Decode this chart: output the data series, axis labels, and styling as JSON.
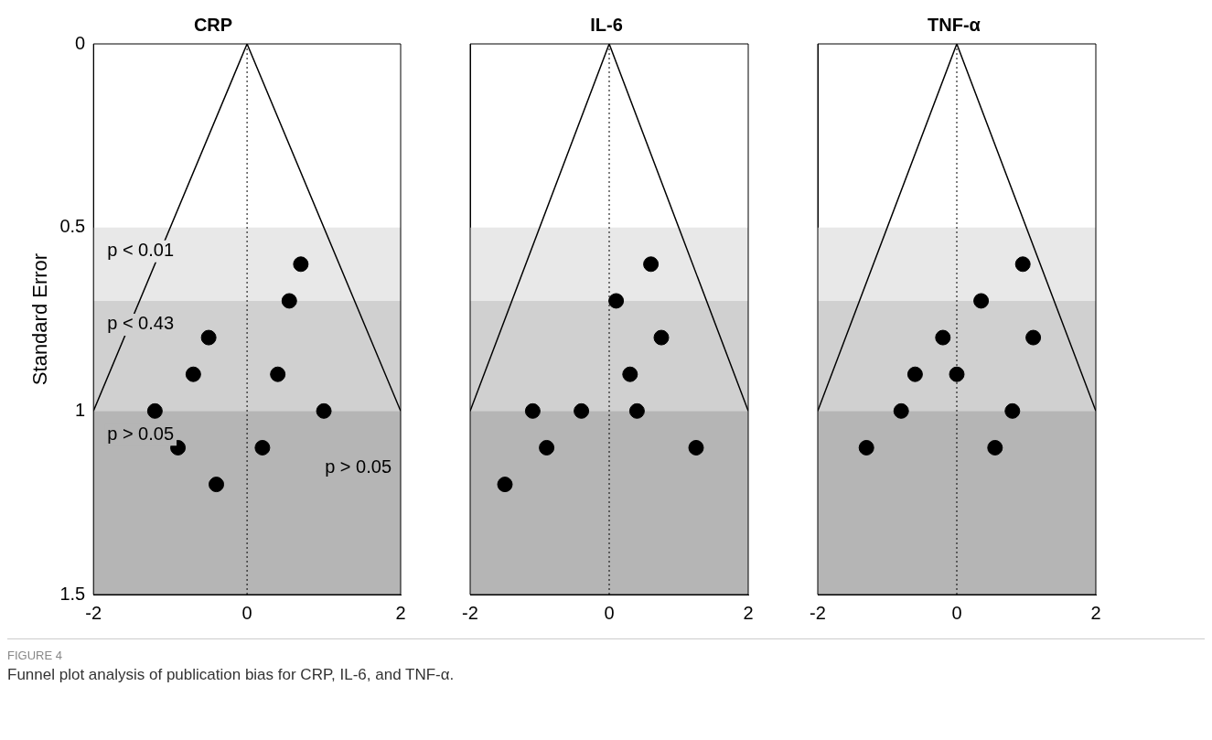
{
  "chart_data": [
    {
      "type": "scatter",
      "title": "CRP",
      "ylabel": "Standard Error",
      "xlim": [
        -2,
        2
      ],
      "xticks": [
        -2,
        0,
        2
      ],
      "ylim": [
        1.5,
        0
      ],
      "yticks": [
        0,
        0.5,
        1,
        1.5
      ],
      "grid": false,
      "legend": false,
      "series": [
        {
          "type": "line",
          "color": "#000000",
          "x": [
            -2,
            0,
            2
          ],
          "values": [
            1,
            0,
            1
          ]
        },
        {
          "type": "scatter",
          "marker": "circle",
          "color": "#000000",
          "x": [
            0.7,
            0.55,
            -0.5,
            -0.7,
            0.4,
            -1.2,
            1.0,
            -0.9,
            0.2,
            -0.4
          ],
          "values": [
            0.6,
            0.7,
            0.8,
            0.9,
            0.9,
            1.0,
            1.0,
            1.1,
            1.1,
            1.2
          ]
        }
      ],
      "bands": [
        {
          "axis": "y",
          "from": 0.5,
          "to": 0.7,
          "label": "p < 0.01",
          "color": "#e8e8e8"
        },
        {
          "axis": "y",
          "from": 0.7,
          "to": 1.0,
          "label": "p < 0.43",
          "color": "#d0d0d0"
        },
        {
          "axis": "y",
          "from": 1.0,
          "to": 1.5,
          "label": "p > 0.05",
          "color": "#b5b5b5"
        }
      ],
      "ref_lines": [
        {
          "axis": "x",
          "value": 0,
          "color": "#000000",
          "line_style": "dotted"
        }
      ],
      "annotations": [
        "p > 0.05"
      ]
    },
    {
      "type": "scatter",
      "title": "IL-6",
      "xlim": [
        -2,
        2
      ],
      "xticks": [
        -2,
        0,
        2
      ],
      "ylim": [
        1.5,
        0
      ],
      "yticks": [
        0,
        0.5,
        1,
        1.5
      ],
      "tick_labels": "x",
      "grid": false,
      "legend": false,
      "series": [
        {
          "type": "line",
          "color": "#000000",
          "x": [
            -2,
            0,
            2
          ],
          "values": [
            1,
            0,
            1
          ]
        },
        {
          "type": "scatter",
          "marker": "circle",
          "color": "#000000",
          "x": [
            0.6,
            0.1,
            0.75,
            0.3,
            -1.1,
            -0.4,
            0.4,
            -0.9,
            1.25,
            -1.5
          ],
          "values": [
            0.6,
            0.7,
            0.8,
            0.9,
            1.0,
            1.0,
            1.0,
            1.1,
            1.1,
            1.2
          ]
        }
      ],
      "bands": [
        {
          "axis": "y",
          "from": 0.5,
          "to": 0.7,
          "color": "#e8e8e8"
        },
        {
          "axis": "y",
          "from": 0.7,
          "to": 1.0,
          "color": "#d0d0d0"
        },
        {
          "axis": "y",
          "from": 1.0,
          "to": 1.5,
          "color": "#b5b5b5"
        }
      ],
      "ref_lines": [
        {
          "axis": "x",
          "value": 0,
          "color": "#000000",
          "line_style": "dotted"
        }
      ]
    },
    {
      "type": "scatter",
      "title": "TNF-α",
      "xlim": [
        -2,
        2
      ],
      "xticks": [
        -2,
        0,
        2
      ],
      "ylim": [
        1.5,
        0
      ],
      "yticks": [
        0,
        0.5,
        1,
        1.5
      ],
      "tick_labels": "x",
      "grid": false,
      "legend": false,
      "series": [
        {
          "type": "line",
          "color": "#000000",
          "x": [
            -2,
            0,
            2
          ],
          "values": [
            1,
            0,
            1
          ]
        },
        {
          "type": "scatter",
          "marker": "circle",
          "color": "#000000",
          "x": [
            0.95,
            0.35,
            -0.2,
            1.1,
            -0.6,
            0.0,
            -0.8,
            0.8,
            -1.3,
            0.55
          ],
          "values": [
            0.6,
            0.7,
            0.8,
            0.8,
            0.9,
            0.9,
            1.0,
            1.0,
            1.1,
            1.1
          ]
        }
      ],
      "bands": [
        {
          "axis": "y",
          "from": 0.5,
          "to": 0.7,
          "color": "#e8e8e8"
        },
        {
          "axis": "y",
          "from": 0.7,
          "to": 1.0,
          "color": "#d0d0d0"
        },
        {
          "axis": "y",
          "from": 1.0,
          "to": 1.5,
          "color": "#b5b5b5"
        }
      ],
      "ref_lines": [
        {
          "axis": "x",
          "value": 0,
          "color": "#000000",
          "line_style": "dotted"
        }
      ],
      "annotations": [
        "FIGURE 4",
        "Funnel plot analysis of publication bias for CRP, IL-6, and TNF-α."
      ]
    }
  ]
}
